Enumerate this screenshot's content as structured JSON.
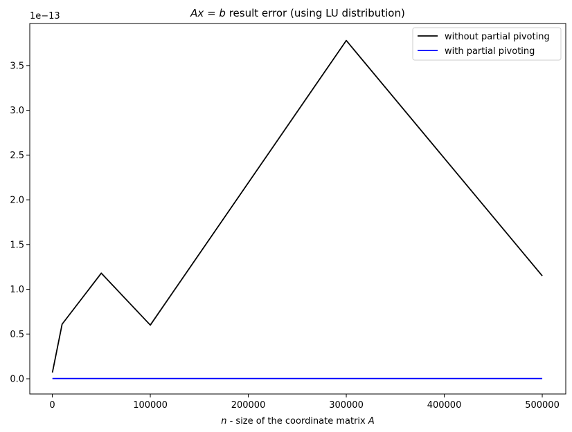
{
  "chart_data": {
    "type": "line",
    "title_parts": {
      "math": "Ax = b",
      "rest": " result error (using LU distribution)"
    },
    "xlabel_parts": {
      "n": "n",
      "mid": " - size of the coordinate matrix ",
      "A": "A"
    },
    "ylabel": "",
    "y_offset_label": "1e−13",
    "y_scale": 1e-13,
    "xlim": [
      -23000,
      524000
    ],
    "ylim": [
      -0.17,
      3.97
    ],
    "x_ticks": [
      0,
      100000,
      200000,
      300000,
      400000,
      500000
    ],
    "x_tick_labels": [
      "0",
      "100000",
      "200000",
      "300000",
      "400000",
      "500000"
    ],
    "y_ticks": [
      0.0,
      0.5,
      1.0,
      1.5,
      2.0,
      2.5,
      3.0,
      3.5
    ],
    "y_tick_labels": [
      "0.0",
      "0.5",
      "1.0",
      "1.5",
      "2.0",
      "2.5",
      "3.0",
      "3.5"
    ],
    "grid": false,
    "legend_position": "top-right",
    "x": [
      100,
      10000,
      50000,
      100000,
      300000,
      500000
    ],
    "series": [
      {
        "name": "without partial pivoting",
        "color": "#000000",
        "values": [
          0.07,
          0.61,
          1.18,
          0.6,
          3.78,
          1.15
        ]
      },
      {
        "name": "with partial pivoting",
        "color": "#0000ff",
        "values": [
          0.003,
          0.003,
          0.003,
          0.003,
          0.003,
          0.003
        ]
      }
    ]
  }
}
